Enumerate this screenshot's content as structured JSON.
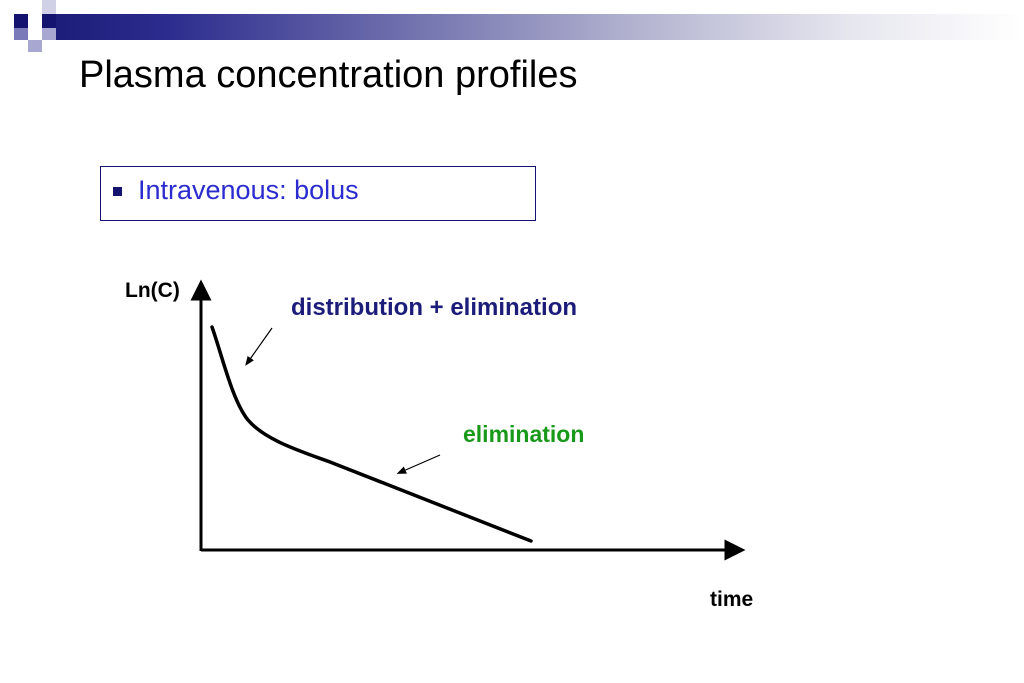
{
  "slide": {
    "title": "Plasma concentration profiles",
    "bullet": "Intravenous: bolus"
  },
  "diagram": {
    "y_axis_label": "Ln(C)",
    "x_axis_label": "time",
    "annotations": {
      "distribution_elimination": "distribution + elimination",
      "elimination": "elimination"
    }
  },
  "colors": {
    "header_dark": "#141470",
    "bullet_text": "#2b2bd0",
    "distribution_label": "#1c1c7a",
    "elimination_label": "#199919",
    "curve": "#000000"
  }
}
